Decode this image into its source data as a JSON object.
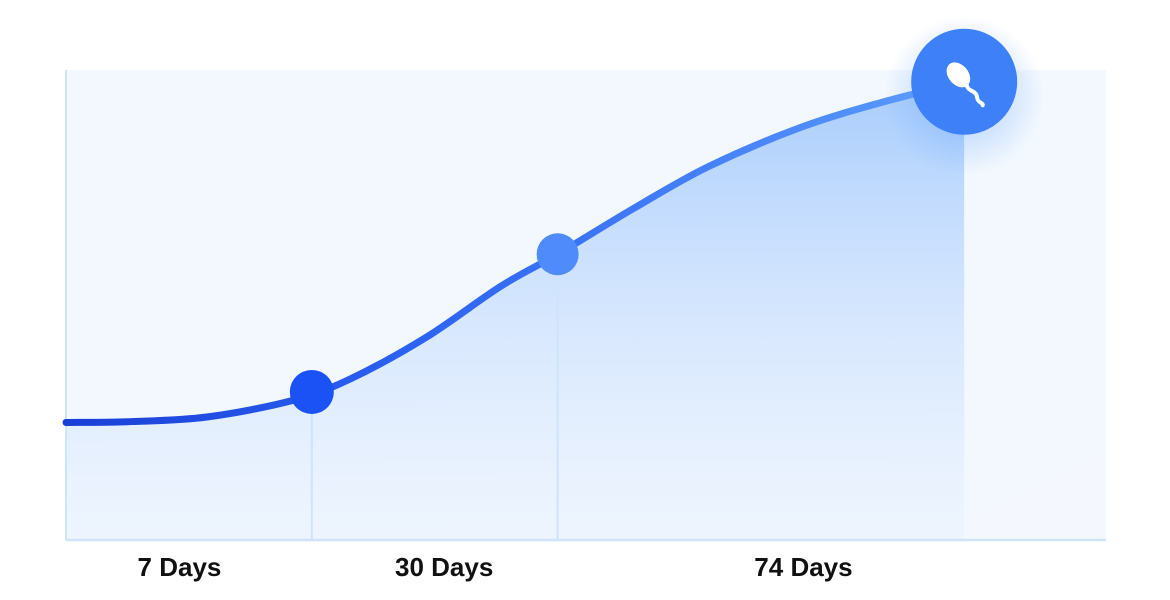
{
  "chart_data": {
    "type": "area",
    "title": "",
    "xlabel": "",
    "ylabel": "",
    "categories": [
      "7 Days",
      "30 Days",
      "74 Days"
    ],
    "xlim": [
      0,
      110
    ],
    "ylim": [
      0,
      1
    ],
    "grid": false,
    "series": [
      {
        "x": [
          0,
          7,
          15,
          24,
          30,
          38,
          46,
          52,
          60,
          68,
          78,
          87,
          95
        ],
        "values": [
          0.25,
          0.252,
          0.262,
          0.297,
          0.342,
          0.43,
          0.54,
          0.608,
          0.705,
          0.795,
          0.88,
          0.935,
          0.975
        ]
      }
    ],
    "markers": [
      {
        "x": 26,
        "y": 0.315
      },
      {
        "x": 52,
        "y": 0.608
      },
      {
        "x": 95,
        "y": 0.975
      }
    ],
    "tick_positions": [
      12,
      40,
      78
    ],
    "end_icon": "sperm-icon",
    "colors": {
      "line_start": "#1a3fd6",
      "line_end": "#5b9bff",
      "marker": "#1a52f5",
      "marker_mid": "#4f8bfb",
      "end_badge": "#3d80f7",
      "axis": "#cfe3fb",
      "area": "#8fbefc"
    }
  }
}
